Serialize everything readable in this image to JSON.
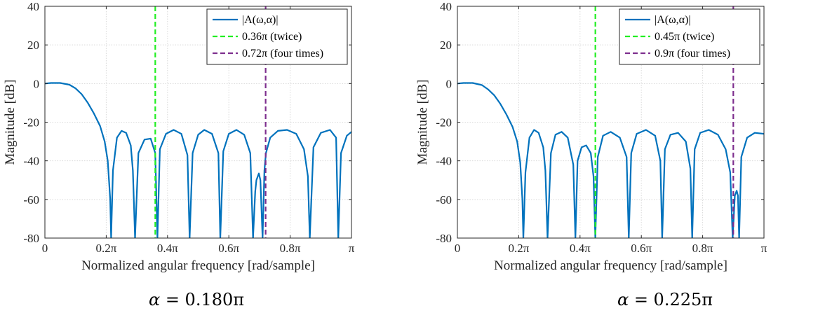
{
  "chart_data": [
    {
      "type": "line",
      "xlabel": "Normalized angular frequency [rad/sample]",
      "ylabel": "Magnitude [dB]",
      "xlim": [
        0,
        1
      ],
      "ylim": [
        -80,
        40
      ],
      "x_unit": "pi rad/sample",
      "x_ticks": [
        0,
        0.2,
        0.4,
        0.6,
        0.8,
        1.0
      ],
      "x_tick_labels": [
        "0",
        "0.2π",
        "0.4π",
        "0.6π",
        "0.8π",
        "π"
      ],
      "y_ticks": [
        40,
        20,
        0,
        -20,
        -40,
        -60,
        -80
      ],
      "y_tick_labels": [
        "40",
        "20",
        "0",
        "-20",
        "-40",
        "-60",
        "-80"
      ],
      "grid": true,
      "legend_position": "top-right",
      "caption_prefix": "α",
      "caption_value": "= 0.180π",
      "series": [
        {
          "name": "|A(ω,α)|",
          "color": "#0072bd",
          "style": "solid",
          "x": [
            0,
            0.02,
            0.05,
            0.08,
            0.1,
            0.12,
            0.14,
            0.16,
            0.18,
            0.195,
            0.205,
            0.213,
            0.216,
            0.222,
            0.235,
            0.25,
            0.265,
            0.28,
            0.287,
            0.294,
            0.305,
            0.325,
            0.345,
            0.36,
            0.367,
            0.375,
            0.395,
            0.42,
            0.445,
            0.465,
            0.472,
            0.482,
            0.5,
            0.52,
            0.545,
            0.566,
            0.572,
            0.582,
            0.6,
            0.625,
            0.65,
            0.67,
            0.679,
            0.686,
            0.69,
            0.698,
            0.703,
            0.71,
            0.716,
            0.721,
            0.735,
            0.76,
            0.79,
            0.82,
            0.845,
            0.858,
            0.864,
            0.876,
            0.9,
            0.93,
            0.95,
            0.957,
            0.966,
            0.985,
            1.0
          ],
          "y": [
            0,
            0.3,
            0.3,
            -0.6,
            -2.5,
            -5.5,
            -10,
            -15.5,
            -22,
            -30,
            -40,
            -60,
            -80,
            -45,
            -28,
            -24.5,
            -25.5,
            -32,
            -45,
            -80,
            -36,
            -29,
            -28.5,
            -36,
            -80,
            -34,
            -26,
            -24,
            -26,
            -37,
            -80,
            -36,
            -26.5,
            -24,
            -26,
            -36,
            -80,
            -35,
            -26,
            -24,
            -26.5,
            -36,
            -80,
            -56,
            -50,
            -46.5,
            -50,
            -80,
            -45,
            -36,
            -28,
            -24.5,
            -24,
            -26,
            -34,
            -48,
            -80,
            -33,
            -25.5,
            -24,
            -28,
            -80,
            -36,
            -27,
            -25
          ]
        },
        {
          "name": "0.36π (twice)",
          "color": "#22ee22",
          "style": "dashed",
          "x_value": 0.36
        },
        {
          "name": "0.72π (four times)",
          "color": "#7e2f8e",
          "style": "dashed",
          "x_value": 0.72
        }
      ]
    },
    {
      "type": "line",
      "xlabel": "Normalized angular frequency [rad/sample]",
      "ylabel": "Magnitude [dB]",
      "xlim": [
        0,
        1
      ],
      "ylim": [
        -80,
        40
      ],
      "x_unit": "pi rad/sample",
      "x_ticks": [
        0,
        0.2,
        0.4,
        0.6,
        0.8,
        1.0
      ],
      "x_tick_labels": [
        "0",
        "0.2π",
        "0.4π",
        "0.6π",
        "0.8π",
        "π"
      ],
      "y_ticks": [
        40,
        20,
        0,
        -20,
        -40,
        -60,
        -80
      ],
      "y_tick_labels": [
        "40",
        "20",
        "0",
        "-20",
        "-40",
        "-60",
        "-80"
      ],
      "grid": true,
      "legend_position": "top-right",
      "caption_prefix": "α",
      "caption_value": "= 0.225π",
      "series": [
        {
          "name": "|A(ω,α)|",
          "color": "#0072bd",
          "style": "solid",
          "x": [
            0,
            0.02,
            0.05,
            0.08,
            0.1,
            0.12,
            0.14,
            0.16,
            0.18,
            0.195,
            0.205,
            0.212,
            0.215,
            0.222,
            0.235,
            0.25,
            0.265,
            0.28,
            0.287,
            0.294,
            0.305,
            0.32,
            0.34,
            0.36,
            0.378,
            0.385,
            0.392,
            0.405,
            0.42,
            0.435,
            0.444,
            0.45,
            0.458,
            0.475,
            0.5,
            0.53,
            0.552,
            0.559,
            0.567,
            0.585,
            0.615,
            0.645,
            0.662,
            0.668,
            0.677,
            0.695,
            0.72,
            0.745,
            0.76,
            0.766,
            0.774,
            0.792,
            0.82,
            0.85,
            0.875,
            0.89,
            0.898,
            0.905,
            0.911,
            0.915,
            0.919,
            0.926,
            0.945,
            0.97,
            1.0
          ],
          "y": [
            0,
            0.3,
            0.3,
            -0.8,
            -3,
            -6,
            -10.5,
            -16,
            -22.5,
            -30,
            -41,
            -60,
            -80,
            -46,
            -28,
            -24,
            -25.5,
            -33,
            -45,
            -80,
            -36,
            -26.5,
            -25,
            -28,
            -42,
            -80,
            -40,
            -33,
            -32,
            -36,
            -48,
            -80,
            -38,
            -27,
            -25,
            -28,
            -38,
            -80,
            -36,
            -26,
            -24,
            -27,
            -40,
            -80,
            -34,
            -26.5,
            -25.5,
            -30,
            -44,
            -80,
            -34,
            -25.5,
            -24,
            -26.5,
            -34,
            -46,
            -80,
            -58,
            -55.5,
            -58,
            -80,
            -38,
            -28,
            -25.5,
            -26
          ]
        },
        {
          "name": "0.45π (twice)",
          "color": "#22ee22",
          "style": "dashed",
          "x_value": 0.45
        },
        {
          "name": "0.9π (four times)",
          "color": "#7e2f8e",
          "style": "dashed",
          "x_value": 0.9
        }
      ]
    }
  ]
}
